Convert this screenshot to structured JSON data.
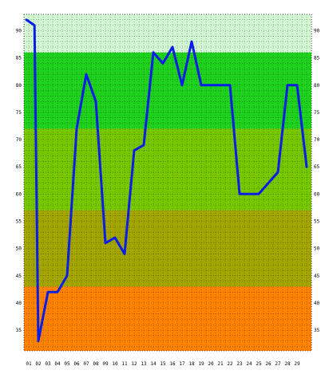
{
  "chart_data": {
    "type": "line",
    "title": "",
    "xlabel": "",
    "ylabel": "",
    "x": [
      "01",
      "02",
      "03",
      "04",
      "05",
      "06",
      "07",
      "08",
      "09",
      "10",
      "11",
      "12",
      "13",
      "14",
      "15",
      "16",
      "17",
      "18",
      "19",
      "20",
      "21",
      "22",
      "23",
      "24",
      "25",
      "26",
      "27",
      "28",
      "29"
    ],
    "series": [
      {
        "name": "",
        "color": "#0a1ee6",
        "points": [
          [
            0.75,
            92
          ],
          [
            1.6,
            91
          ],
          [
            2.0,
            33
          ],
          [
            3.0,
            42
          ],
          [
            4.0,
            42
          ],
          [
            5.0,
            45
          ],
          [
            6.0,
            72
          ],
          [
            7.0,
            82
          ],
          [
            8.0,
            77
          ],
          [
            9.0,
            51
          ],
          [
            10.0,
            52
          ],
          [
            11.0,
            49
          ],
          [
            12.0,
            68
          ],
          [
            13.0,
            69
          ],
          [
            14.0,
            86
          ],
          [
            15.0,
            84
          ],
          [
            16.0,
            87
          ],
          [
            17.0,
            80
          ],
          [
            18.0,
            88
          ],
          [
            19.0,
            80
          ],
          [
            20.0,
            80
          ],
          [
            21.0,
            80
          ],
          [
            22.0,
            80
          ],
          [
            23.0,
            60
          ],
          [
            24.0,
            60
          ],
          [
            25.0,
            60
          ],
          [
            27.0,
            64
          ],
          [
            28.0,
            80
          ],
          [
            29.0,
            80
          ],
          [
            30.0,
            65
          ]
        ]
      }
    ],
    "y_ticks": [
      35,
      40,
      45,
      50,
      55,
      60,
      65,
      70,
      75,
      80,
      85,
      90
    ],
    "ylim": [
      31.2,
      93.0
    ],
    "xlim": [
      0.5,
      30.5
    ],
    "grid": true,
    "y_ticks_both_sides": true,
    "bands": [
      {
        "from": 86,
        "to": 93.0,
        "color": "#d2f7d2"
      },
      {
        "from": 72,
        "to": 86,
        "color": "#1ed21e"
      },
      {
        "from": 57,
        "to": 72,
        "color": "#78c800"
      },
      {
        "from": 43,
        "to": 57,
        "color": "#a5a500"
      },
      {
        "from": 31.2,
        "to": 43,
        "color": "#ff8200"
      }
    ]
  }
}
